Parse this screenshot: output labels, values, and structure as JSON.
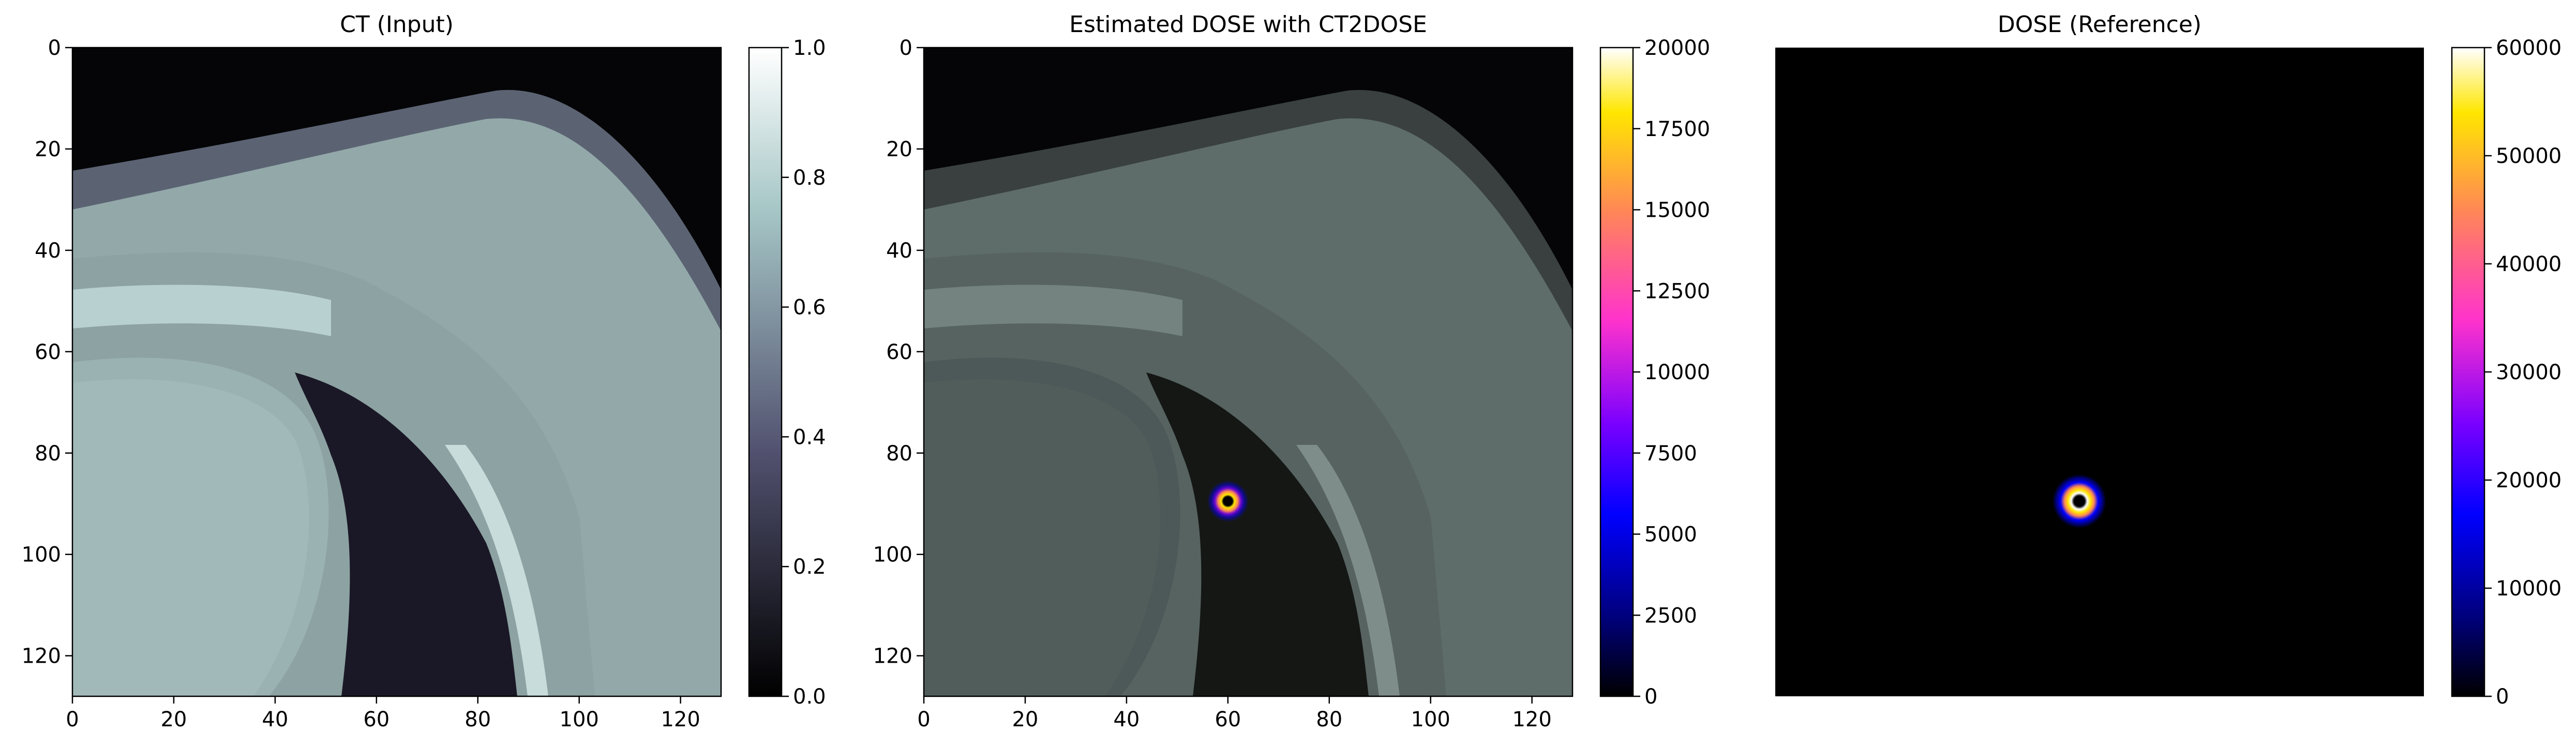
{
  "chart_data": [
    {
      "type": "heatmap",
      "title": "CT (Input)",
      "xlabel": "",
      "ylabel": "",
      "xlim": [
        0,
        128
      ],
      "ylim": [
        128,
        0
      ],
      "xticks": [
        0,
        20,
        40,
        60,
        80,
        100,
        120
      ],
      "yticks": [
        0,
        20,
        40,
        60,
        80,
        100,
        120
      ],
      "image": "axial CT slice: chest wall, rib, lung (dark), heart",
      "colormap": "bone",
      "colorbar": {
        "min": 0.0,
        "max": 1.0,
        "ticks": [
          "0.0",
          "0.2",
          "0.4",
          "0.6",
          "0.8",
          "1.0"
        ]
      }
    },
    {
      "type": "heatmap",
      "title": "Estimated DOSE with CT2DOSE",
      "xlabel": "",
      "ylabel": "",
      "xlim": [
        0,
        128
      ],
      "ylim": [
        128,
        0
      ],
      "xticks": [
        0,
        20,
        40,
        60,
        80,
        100,
        120
      ],
      "yticks": [
        0,
        20,
        40,
        60,
        80,
        100,
        120
      ],
      "image": "CT slice with estimated dose overlay",
      "hotspot": {
        "x": 60,
        "y": 89.5
      },
      "colormap": "gnuplot2",
      "colorbar": {
        "min": 0,
        "max": 20000,
        "ticks": [
          "0",
          "2500",
          "5000",
          "7500",
          "10000",
          "12500",
          "15000",
          "17500",
          "20000"
        ]
      }
    },
    {
      "type": "heatmap",
      "title": "DOSE (Reference)",
      "xlabel": "",
      "ylabel": "",
      "xlim": [
        0,
        128
      ],
      "ylim": [
        128,
        0
      ],
      "axes_visible": false,
      "image": "reference dose distribution",
      "hotspot": {
        "x": 60,
        "y": 89.5
      },
      "colormap": "gnuplot2",
      "colorbar": {
        "min": 0,
        "max": 60000,
        "ticks": [
          "0",
          "10000",
          "20000",
          "30000",
          "40000",
          "50000",
          "60000"
        ]
      }
    }
  ]
}
